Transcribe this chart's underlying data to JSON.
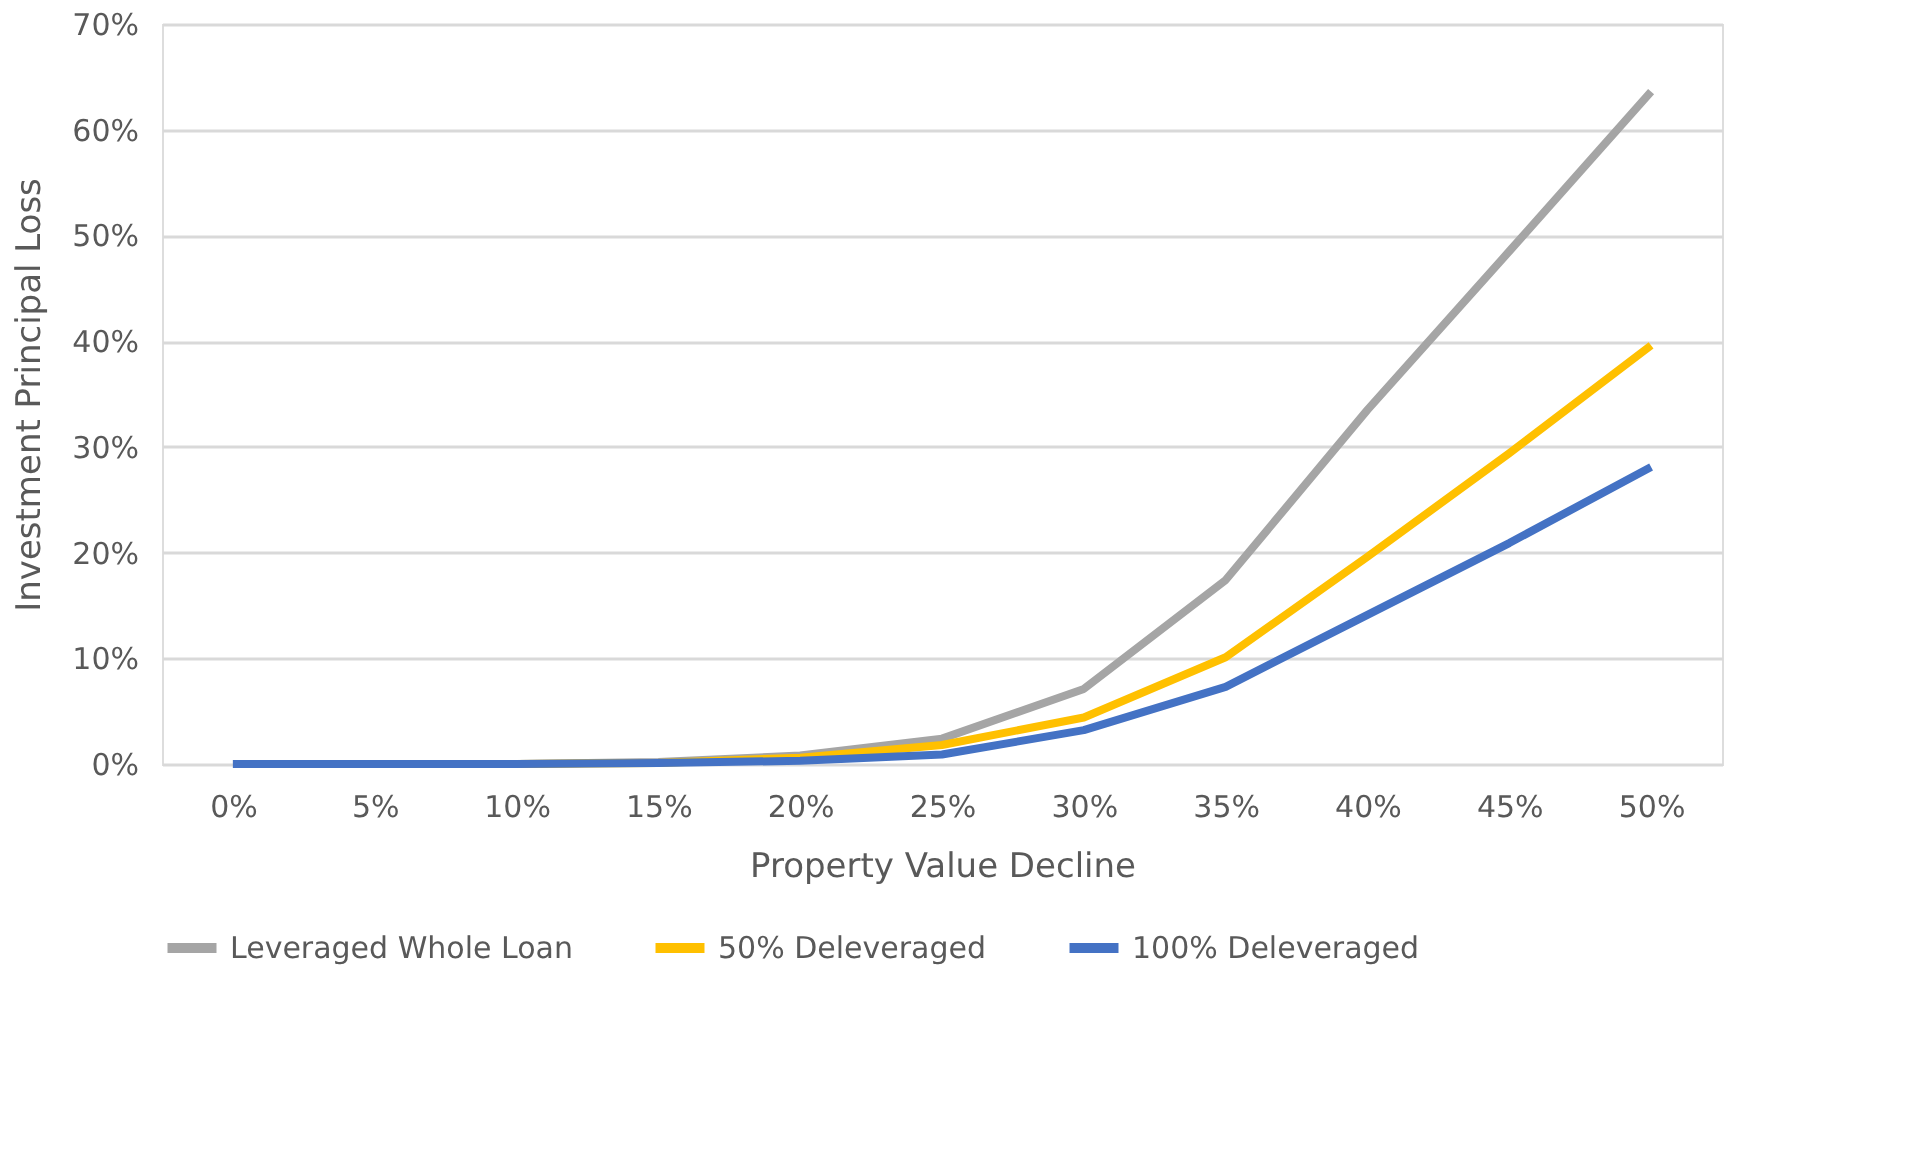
{
  "chart_data": {
    "type": "line",
    "xlabel": "Property Value Decline",
    "ylabel": "Investment  Principal Loss",
    "categories": [
      "0%",
      "5%",
      "10%",
      "15%",
      "20%",
      "25%",
      "30%",
      "35%",
      "40%",
      "45%",
      "50%"
    ],
    "series": [
      {
        "name": "Leveraged Whole Loan",
        "color": "#a5a5a5",
        "values": [
          0,
          0,
          0,
          0.2,
          0.8,
          2.4,
          7.1,
          17.4,
          33.5,
          48.5,
          63.6
        ]
      },
      {
        "name": "50% Deleveraged",
        "color": "#ffc000",
        "values": [
          null,
          null,
          0,
          0.1,
          0.6,
          1.8,
          4.4,
          10.1,
          19.6,
          29.4,
          39.6
        ]
      },
      {
        "name": "100% Deleveraged",
        "color": "#4472c4",
        "values": [
          0,
          0,
          0,
          0.1,
          0.3,
          0.9,
          3.2,
          7.3,
          14.1,
          20.9,
          28.1
        ]
      }
    ],
    "ylim": [
      0,
      70
    ],
    "yticks": [
      {
        "value": 0,
        "label": "0%"
      },
      {
        "value": 10,
        "label": "10%"
      },
      {
        "value": 20,
        "label": "20%"
      },
      {
        "value": 30,
        "label": "30%"
      },
      {
        "value": 40,
        "label": "40%"
      },
      {
        "value": 50,
        "label": "50%"
      },
      {
        "value": 60,
        "label": "60%"
      },
      {
        "value": 70,
        "label": "70%"
      }
    ],
    "grid": "y",
    "legend": "bottom",
    "marker": "none",
    "line_style": "solid"
  }
}
